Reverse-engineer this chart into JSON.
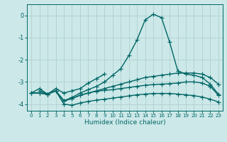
{
  "xlabel": "Humidex (Indice chaleur)",
  "xlim": [
    -0.5,
    23.5
  ],
  "ylim": [
    -4.3,
    0.5
  ],
  "yticks": [
    0,
    -1,
    -2,
    -3,
    -4
  ],
  "xticks": [
    0,
    1,
    2,
    3,
    4,
    5,
    6,
    7,
    8,
    9,
    10,
    11,
    12,
    13,
    14,
    15,
    16,
    17,
    18,
    19,
    20,
    21,
    22,
    23
  ],
  "bg_color": "#cce8e8",
  "grid_color": "#aacccc",
  "line_color": "#006666",
  "lines": [
    {
      "x": [
        0,
        1,
        2,
        3,
        4,
        5,
        6,
        7,
        8,
        9,
        10,
        11,
        12,
        13,
        14,
        15,
        16,
        17,
        18,
        19,
        20,
        21,
        22,
        23
      ],
      "y": [
        -3.5,
        -3.3,
        -3.55,
        -3.4,
        -3.85,
        -3.7,
        -3.5,
        -3.35,
        -3.2,
        -3.0,
        -2.7,
        -2.4,
        -1.8,
        -1.1,
        -0.2,
        0.05,
        -0.1,
        -1.2,
        -2.5,
        -2.65,
        -2.7,
        -2.8,
        -3.1,
        -3.55
      ],
      "marker": "+",
      "markersize": 4,
      "linewidth": 1.0
    },
    {
      "x": [
        1,
        2,
        3,
        4,
        5,
        6,
        7,
        8,
        9
      ],
      "y": [
        -3.4,
        -3.55,
        -3.3,
        -3.5,
        -3.4,
        -3.3,
        -3.05,
        -2.85,
        -2.65
      ],
      "marker": "+",
      "markersize": 4,
      "linewidth": 1.0
    },
    {
      "x": [
        0,
        1,
        2,
        3,
        4,
        5,
        6,
        7,
        8,
        9,
        10,
        11,
        12,
        13,
        14,
        15,
        16,
        17,
        18,
        19,
        20,
        21,
        22,
        23
      ],
      "y": [
        -3.5,
        -3.5,
        -3.55,
        -3.4,
        -3.85,
        -3.75,
        -3.6,
        -3.5,
        -3.4,
        -3.3,
        -3.2,
        -3.1,
        -3.0,
        -2.9,
        -2.8,
        -2.75,
        -2.7,
        -2.65,
        -2.6,
        -2.6,
        -2.6,
        -2.65,
        -2.8,
        -3.1
      ],
      "marker": "+",
      "markersize": 4,
      "linewidth": 1.0
    },
    {
      "x": [
        0,
        1,
        2,
        3,
        4,
        5,
        6,
        7,
        8,
        9,
        10,
        11,
        12,
        13,
        14,
        15,
        16,
        17,
        18,
        19,
        20,
        21,
        22,
        23
      ],
      "y": [
        -3.5,
        -3.5,
        -3.55,
        -3.4,
        -3.85,
        -3.75,
        -3.6,
        -3.5,
        -3.42,
        -3.38,
        -3.35,
        -3.3,
        -3.25,
        -3.2,
        -3.15,
        -3.12,
        -3.1,
        -3.08,
        -3.05,
        -3.0,
        -3.0,
        -3.05,
        -3.2,
        -3.6
      ],
      "marker": "+",
      "markersize": 4,
      "linewidth": 1.0
    },
    {
      "x": [
        0,
        1,
        2,
        3,
        4,
        5,
        6,
        7,
        8,
        9,
        10,
        11,
        12,
        13,
        14,
        15,
        16,
        17,
        18,
        19,
        20,
        21,
        22,
        23
      ],
      "y": [
        -3.5,
        -3.5,
        -3.55,
        -3.4,
        -4.0,
        -4.05,
        -3.95,
        -3.88,
        -3.82,
        -3.78,
        -3.73,
        -3.68,
        -3.63,
        -3.58,
        -3.55,
        -3.52,
        -3.52,
        -3.52,
        -3.55,
        -3.58,
        -3.62,
        -3.68,
        -3.78,
        -3.9
      ],
      "marker": "+",
      "markersize": 4,
      "linewidth": 1.0
    }
  ]
}
